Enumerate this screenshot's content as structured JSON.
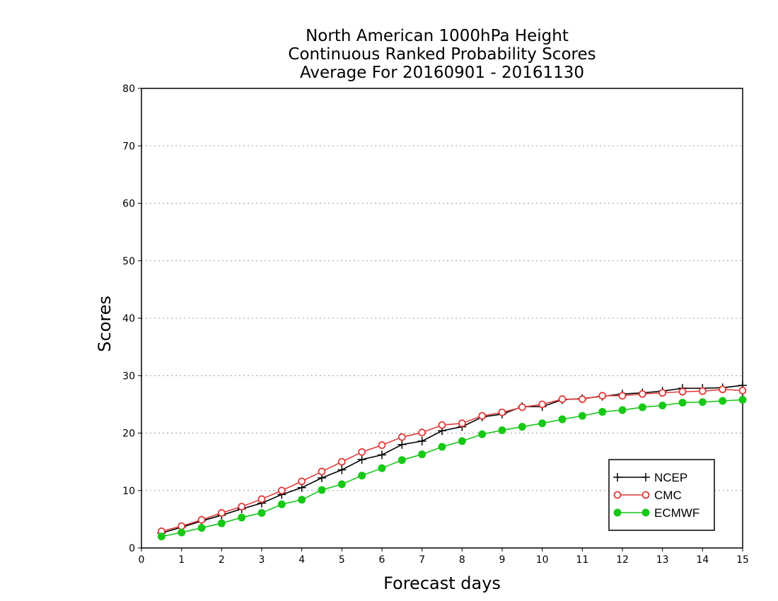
{
  "chart_data": {
    "type": "line",
    "title": [
      "North American 1000hPa Height",
      "Continuous Ranked Probability Scores",
      "Average For 20160901 - 20161130"
    ],
    "xlabel": "Forecast days",
    "ylabel": "Scores",
    "xlim": [
      0,
      15
    ],
    "ylim": [
      0,
      80
    ],
    "xticks": [
      "0",
      "1",
      "2",
      "3",
      "4",
      "5",
      "6",
      "7",
      "8",
      "9",
      "10",
      "11",
      "12",
      "13",
      "14",
      "15"
    ],
    "yticks": [
      "0",
      "10",
      "20",
      "30",
      "40",
      "50",
      "60",
      "70",
      "80"
    ],
    "grid": "horizontal dotted",
    "legend_position": "bottom-right",
    "x": [
      0.5,
      1,
      1.5,
      2,
      2.5,
      3,
      3.5,
      4,
      4.5,
      5,
      5.5,
      6,
      6.5,
      7,
      7.5,
      8,
      8.5,
      9,
      9.5,
      10,
      10.5,
      11,
      11.5,
      12,
      12.5,
      13,
      13.5,
      14,
      14.5,
      15
    ],
    "series": [
      {
        "name": "NCEP",
        "color": "#000000",
        "marker": "plus",
        "values": [
          2.6,
          3.6,
          4.7,
          5.7,
          6.8,
          7.8,
          9.3,
          10.5,
          12.2,
          13.6,
          15.4,
          16.2,
          18.0,
          18.6,
          20.4,
          21.1,
          22.8,
          23.3,
          24.6,
          24.6,
          25.8,
          26.0,
          26.4,
          26.8,
          27.0,
          27.3,
          27.8,
          27.8,
          27.9,
          28.3
        ]
      },
      {
        "name": "CMC",
        "color": "#e03c3c",
        "marker": "open-circle",
        "values": [
          2.9,
          3.8,
          4.9,
          6.1,
          7.2,
          8.5,
          10.0,
          11.6,
          13.3,
          15.0,
          16.7,
          17.9,
          19.3,
          20.1,
          21.4,
          21.7,
          23.0,
          23.6,
          24.5,
          25.0,
          25.9,
          25.9,
          26.5,
          26.5,
          26.8,
          27.0,
          27.2,
          27.3,
          27.6,
          27.4
        ]
      },
      {
        "name": "ECMWF",
        "color": "#18c818",
        "marker": "filled-circle",
        "values": [
          2.0,
          2.7,
          3.5,
          4.3,
          5.3,
          6.1,
          7.6,
          8.4,
          10.1,
          11.1,
          12.6,
          13.9,
          15.3,
          16.3,
          17.6,
          18.6,
          19.8,
          20.5,
          21.1,
          21.7,
          22.4,
          23.0,
          23.7,
          24.0,
          24.5,
          24.8,
          25.3,
          25.4,
          25.6,
          25.8
        ]
      }
    ]
  }
}
